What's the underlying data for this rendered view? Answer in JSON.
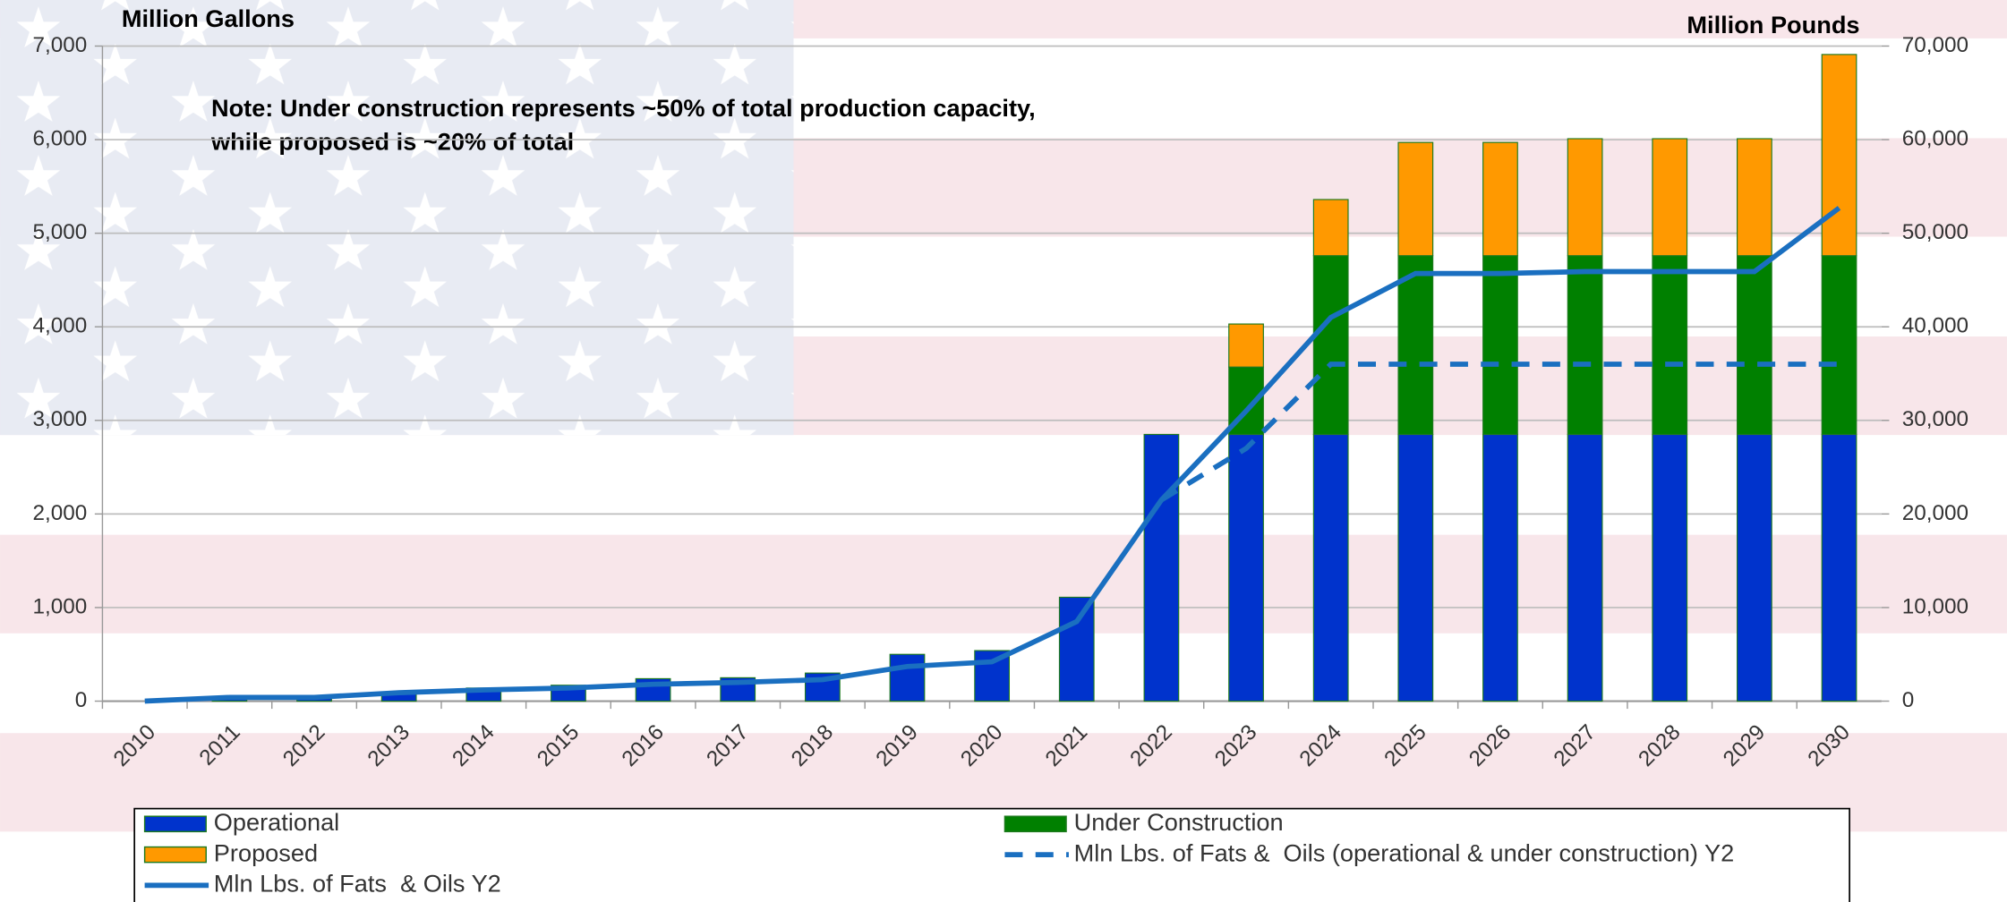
{
  "chart_data": {
    "type": "bar",
    "stacked": true,
    "y_label": "Million Gallons",
    "y2_label": "Million Pounds",
    "annotation": [
      "Note: Under construction represents ~50% of total production capacity,",
      "while proposed is ~20% of total"
    ],
    "categories": [
      "2010",
      "2011",
      "2012",
      "2013",
      "2014",
      "2015",
      "2016",
      "2017",
      "2018",
      "2019",
      "2020",
      "2021",
      "2022",
      "2023",
      "2024",
      "2025",
      "2026",
      "2027",
      "2028",
      "2029",
      "2030"
    ],
    "series": [
      {
        "name": "Operational",
        "type": "bar",
        "color": "#0033cc",
        "values": [
          0,
          30,
          30,
          100,
          140,
          170,
          240,
          250,
          300,
          500,
          540,
          1110,
          2850,
          2850,
          2850,
          2850,
          2850,
          2850,
          2850,
          2850,
          2850
        ]
      },
      {
        "name": "Under Construction",
        "type": "bar",
        "color": "#008000",
        "values": [
          0,
          0,
          0,
          0,
          0,
          0,
          0,
          0,
          0,
          0,
          0,
          0,
          0,
          720,
          1910,
          1910,
          1910,
          1910,
          1910,
          1910,
          1910
        ]
      },
      {
        "name": "Proposed",
        "type": "bar",
        "color": "#ff9900",
        "values": [
          0,
          0,
          0,
          0,
          0,
          0,
          0,
          0,
          0,
          0,
          0,
          0,
          0,
          460,
          600,
          1210,
          1210,
          1250,
          1250,
          1250,
          2150
        ]
      },
      {
        "name": "Mln Lbs. of Fats &  Oils (operational & under construction) Y2",
        "type": "line",
        "axis": "y2",
        "dashed": true,
        "color": "#1a6fc0",
        "values": [
          null,
          null,
          null,
          null,
          null,
          null,
          null,
          null,
          null,
          null,
          null,
          null,
          21500,
          27000,
          36000,
          36000,
          36000,
          36000,
          36000,
          36000,
          36000
        ]
      },
      {
        "name": "Mln Lbs. of Fats  & Oils Y2",
        "type": "line",
        "axis": "y2",
        "dashed": false,
        "color": "#1a6fc0",
        "values": [
          0,
          400,
          400,
          900,
          1200,
          1400,
          1800,
          2000,
          2300,
          3700,
          4200,
          8500,
          21500,
          31000,
          41000,
          45700,
          45700,
          45900,
          45900,
          45900,
          52700
        ]
      }
    ],
    "ylim": [
      0,
      7000
    ],
    "yticks": [
      0,
      {
        "value": 1000,
        "label": "1,000"
      },
      {
        "value": 2000,
        "label": "2,000"
      },
      {
        "value": 3000,
        "label": "3,000"
      },
      {
        "value": 4000,
        "label": "4,000"
      },
      {
        "value": 5000,
        "label": "5,000"
      },
      {
        "value": 6000,
        "label": "6,000"
      },
      {
        "value": 7000,
        "label": "7,000"
      }
    ],
    "y2lim": [
      0,
      70000
    ],
    "y2ticks": [
      0,
      {
        "value": 10000,
        "label": "10,000"
      },
      {
        "value": 20000,
        "label": "20,000"
      },
      {
        "value": 30000,
        "label": "30,000"
      },
      {
        "value": 40000,
        "label": "40,000"
      },
      {
        "value": 50000,
        "label": "50,000"
      },
      {
        "value": 60000,
        "label": "60,000"
      },
      {
        "value": 70000,
        "label": "70,000"
      }
    ],
    "grid": true,
    "legend": "bottom"
  }
}
